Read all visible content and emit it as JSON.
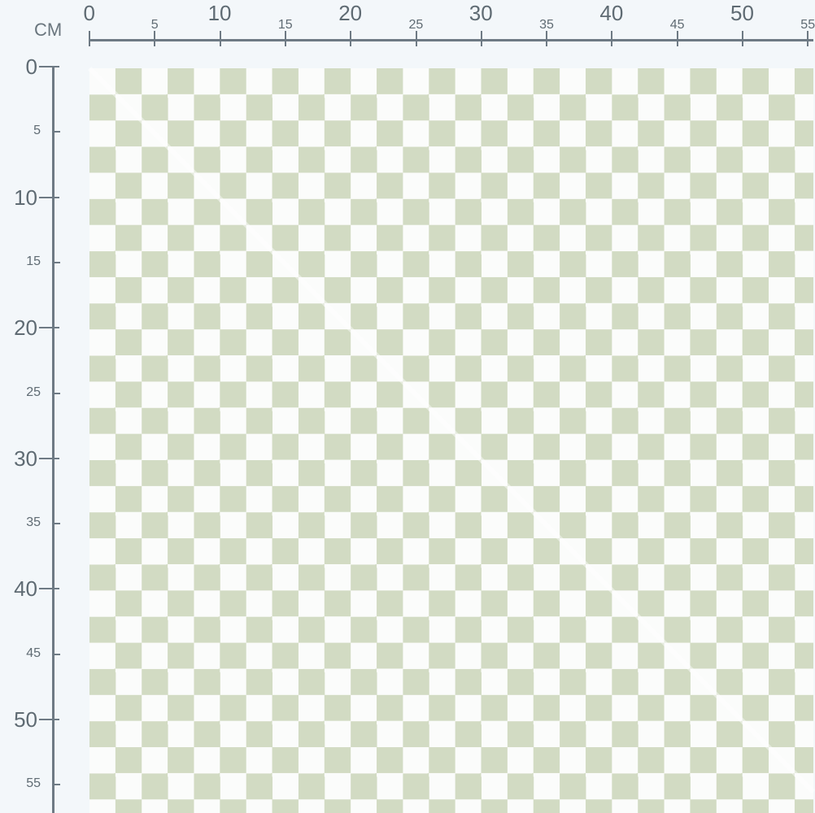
{
  "unit_label": "CM",
  "colors": {
    "pattern_square": "#d2dbc3",
    "pattern_light": "#fbfcfb",
    "ruler": "#6e7a84"
  },
  "pattern": {
    "type": "checkerboard",
    "square_size_cm": 2
  },
  "ruler_horizontal": {
    "major": [
      {
        "v": 0,
        "label": "0"
      },
      {
        "v": 10,
        "label": "10"
      },
      {
        "v": 20,
        "label": "20"
      },
      {
        "v": 30,
        "label": "30"
      },
      {
        "v": 40,
        "label": "40"
      },
      {
        "v": 50,
        "label": "50"
      }
    ],
    "minor": [
      {
        "v": 5,
        "label": "5"
      },
      {
        "v": 15,
        "label": "15"
      },
      {
        "v": 25,
        "label": "25"
      },
      {
        "v": 35,
        "label": "35"
      },
      {
        "v": 45,
        "label": "45"
      },
      {
        "v": 55,
        "label": "55"
      }
    ]
  },
  "ruler_vertical": {
    "major": [
      {
        "v": 0,
        "label": "0"
      },
      {
        "v": 10,
        "label": "10"
      },
      {
        "v": 20,
        "label": "20"
      },
      {
        "v": 30,
        "label": "30"
      },
      {
        "v": 40,
        "label": "40"
      },
      {
        "v": 50,
        "label": "50"
      }
    ],
    "minor": [
      {
        "v": 5,
        "label": "5"
      },
      {
        "v": 15,
        "label": "15"
      },
      {
        "v": 25,
        "label": "25"
      },
      {
        "v": 35,
        "label": "35"
      },
      {
        "v": 45,
        "label": "45"
      },
      {
        "v": 55,
        "label": "55"
      }
    ]
  }
}
